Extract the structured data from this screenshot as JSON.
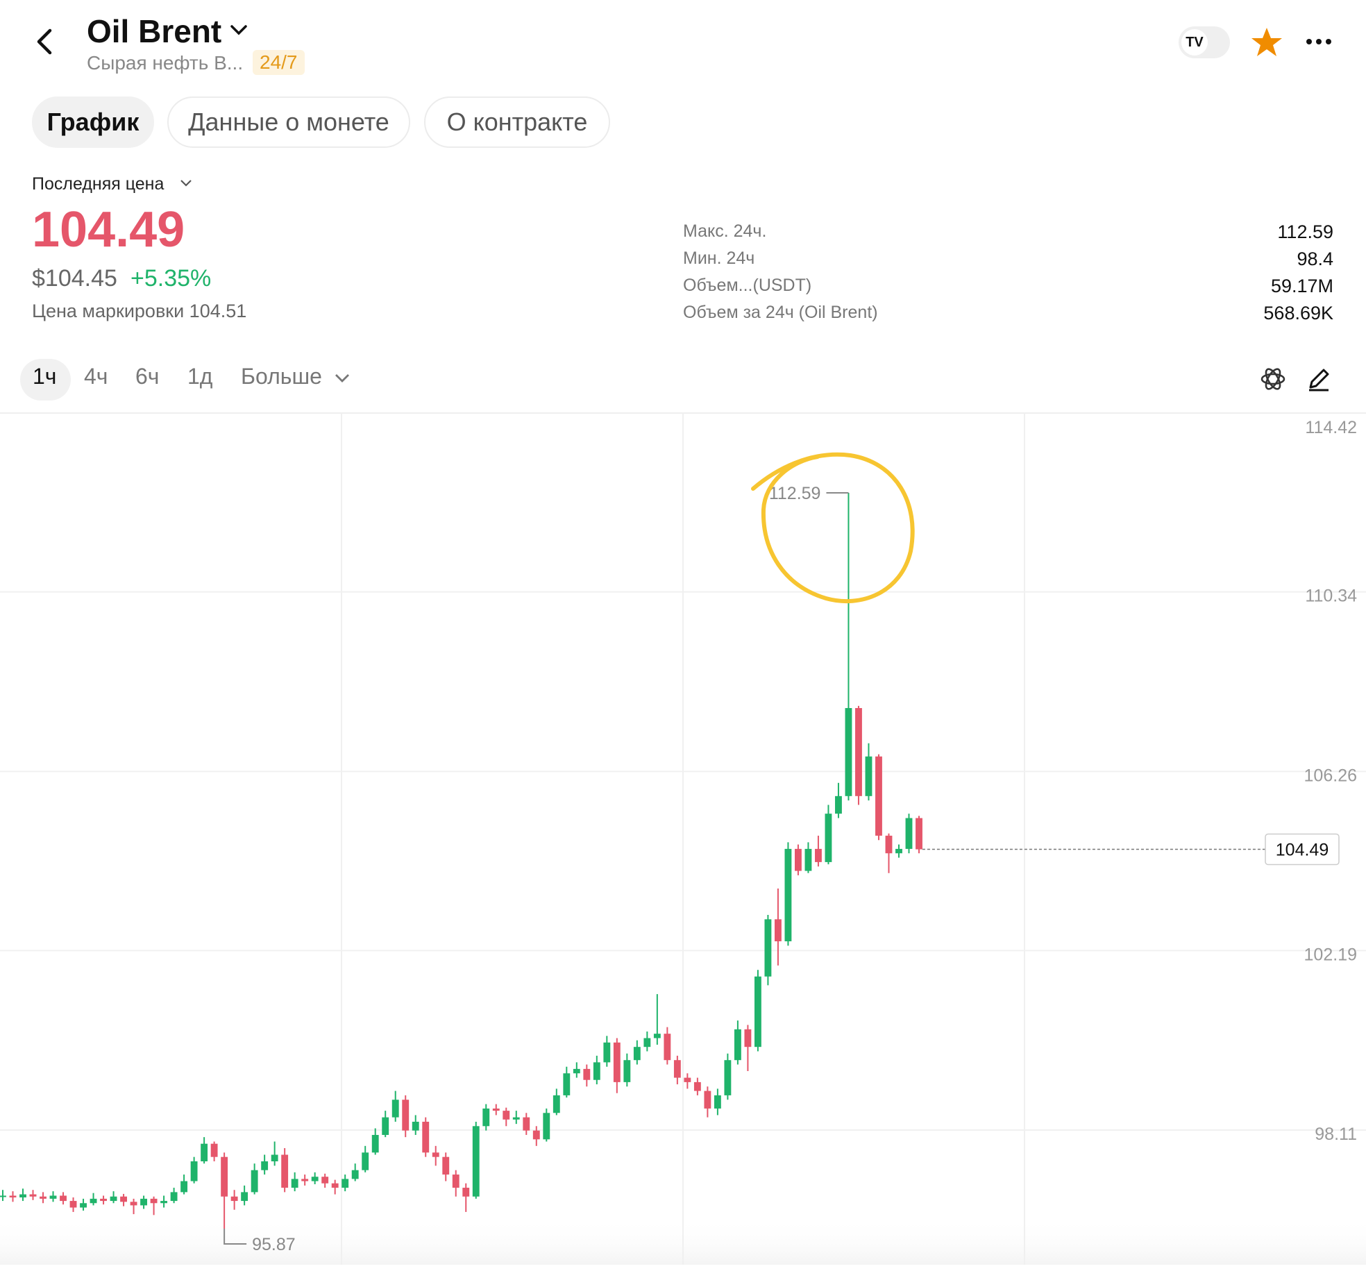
{
  "header": {
    "title": "Oil Brent",
    "subtitle": "Сырая нефть В...",
    "badge": "24/7"
  },
  "tabs": [
    "График",
    "Данные о монете",
    "О контракте"
  ],
  "price_block": {
    "label": "Последняя цена",
    "price": "104.49",
    "usd_price": "$104.45",
    "change": "+5.35%",
    "mark_price": "Цена маркировки 104.51"
  },
  "stats": [
    {
      "label": "Макс. 24ч.",
      "value": "112.59"
    },
    {
      "label": "Мин. 24ч",
      "value": "98.4"
    },
    {
      "label": "Объем...(USDT)",
      "value": "59.17M"
    },
    {
      "label": "Объем за 24ч (Oil Brent)",
      "value": "568.69K"
    }
  ],
  "timeframes": [
    "1ч",
    "4ч",
    "6ч",
    "1д",
    "Больше"
  ],
  "chart_data": {
    "type": "candlestick",
    "up_color": "#1fb36a",
    "down_color": "#e5566a",
    "ylim": [
      95.05,
      114.42
    ],
    "yticks": [
      114.42,
      110.34,
      106.26,
      102.19,
      98.11
    ],
    "grid": true,
    "open": [
      96.6,
      96.62,
      96.58,
      96.65,
      96.6,
      96.55,
      96.62,
      96.5,
      96.35,
      96.45,
      96.55,
      96.5,
      96.6,
      96.48,
      96.4,
      96.55,
      96.45,
      96.5,
      96.7,
      96.95,
      97.4,
      97.8,
      97.5,
      96.6,
      96.5,
      96.7,
      97.2,
      97.4,
      97.55,
      96.8,
      97.0,
      96.95,
      97.05,
      96.9,
      96.8,
      97.0,
      97.2,
      97.6,
      98.0,
      98.4,
      98.8,
      98.1,
      98.3,
      97.6,
      97.5,
      97.1,
      96.8,
      96.6,
      98.2,
      98.6,
      98.55,
      98.35,
      98.4,
      98.1,
      97.9,
      98.5,
      98.9,
      99.4,
      99.5,
      99.25,
      99.65,
      100.1,
      99.2,
      99.7,
      100.0,
      100.2,
      100.3,
      99.7,
      99.3,
      99.2,
      99.0,
      98.6,
      98.9,
      99.7,
      100.4,
      100.0,
      101.6,
      102.9,
      102.4,
      104.5,
      104.0,
      104.5,
      104.2,
      105.3,
      105.7,
      107.7,
      105.7,
      106.6,
      104.8,
      104.4,
      104.5,
      105.2
    ],
    "high": [
      96.75,
      96.72,
      96.78,
      96.75,
      96.7,
      96.72,
      96.7,
      96.58,
      96.55,
      96.68,
      96.62,
      96.72,
      96.66,
      96.55,
      96.62,
      96.6,
      96.62,
      96.8,
      97.1,
      97.5,
      97.95,
      97.85,
      97.6,
      96.75,
      96.85,
      97.35,
      97.55,
      97.85,
      97.7,
      97.15,
      97.1,
      97.15,
      97.12,
      96.98,
      97.1,
      97.35,
      97.75,
      98.15,
      98.55,
      99.0,
      98.9,
      98.45,
      98.4,
      97.75,
      97.6,
      97.2,
      96.9,
      98.3,
      98.7,
      98.7,
      98.62,
      98.55,
      98.5,
      98.2,
      98.6,
      99.05,
      99.55,
      99.65,
      99.6,
      99.8,
      100.25,
      100.2,
      99.85,
      100.15,
      100.35,
      101.2,
      100.45,
      99.8,
      99.4,
      99.3,
      99.1,
      99.05,
      99.85,
      100.6,
      100.5,
      101.75,
      103.0,
      103.6,
      104.65,
      104.6,
      104.65,
      104.8,
      105.5,
      106.0,
      112.59,
      107.75,
      106.9,
      106.65,
      104.85,
      104.6,
      105.3,
      105.25
    ],
    "low": [
      96.5,
      96.48,
      96.5,
      96.52,
      96.45,
      96.48,
      96.42,
      96.25,
      96.28,
      96.4,
      96.42,
      96.45,
      96.38,
      96.2,
      96.32,
      96.18,
      96.35,
      96.45,
      96.65,
      96.9,
      97.35,
      97.4,
      95.87,
      96.3,
      96.4,
      96.65,
      97.1,
      97.3,
      96.7,
      96.72,
      96.85,
      96.88,
      96.8,
      96.65,
      96.72,
      96.95,
      97.15,
      97.55,
      97.95,
      98.3,
      97.95,
      98.0,
      97.5,
      97.3,
      96.95,
      96.6,
      96.25,
      96.55,
      98.1,
      98.45,
      98.2,
      98.25,
      98.0,
      97.75,
      97.85,
      98.45,
      98.85,
      99.3,
      99.1,
      99.15,
      99.55,
      98.95,
      99.1,
      99.6,
      99.9,
      100.05,
      99.6,
      99.15,
      99.05,
      98.9,
      98.4,
      98.45,
      98.8,
      99.6,
      99.45,
      99.9,
      101.4,
      101.85,
      102.3,
      103.9,
      103.95,
      104.1,
      104.15,
      105.2,
      105.6,
      105.5,
      105.6,
      104.7,
      103.95,
      104.3,
      104.4,
      104.4
    ],
    "close": [
      96.62,
      96.58,
      96.65,
      96.6,
      96.55,
      96.62,
      96.5,
      96.35,
      96.45,
      96.55,
      96.5,
      96.6,
      96.48,
      96.4,
      96.55,
      96.45,
      96.5,
      96.7,
      96.95,
      97.4,
      97.8,
      97.5,
      96.6,
      96.5,
      96.7,
      97.2,
      97.4,
      97.55,
      96.8,
      97.0,
      96.95,
      97.05,
      96.9,
      96.8,
      97.0,
      97.2,
      97.6,
      98.0,
      98.4,
      98.8,
      98.1,
      98.3,
      97.6,
      97.5,
      97.1,
      96.8,
      96.6,
      98.2,
      98.6,
      98.55,
      98.35,
      98.4,
      98.1,
      97.9,
      98.5,
      98.9,
      99.4,
      99.5,
      99.25,
      99.65,
      100.1,
      99.2,
      99.7,
      100.0,
      100.2,
      100.3,
      99.7,
      99.3,
      99.2,
      99.0,
      98.6,
      98.9,
      99.7,
      100.4,
      100.0,
      101.6,
      102.9,
      102.4,
      104.5,
      104.0,
      104.5,
      104.2,
      105.3,
      105.7,
      107.7,
      105.7,
      106.6,
      104.8,
      104.4,
      104.5,
      105.2,
      104.49
    ]
  }
}
